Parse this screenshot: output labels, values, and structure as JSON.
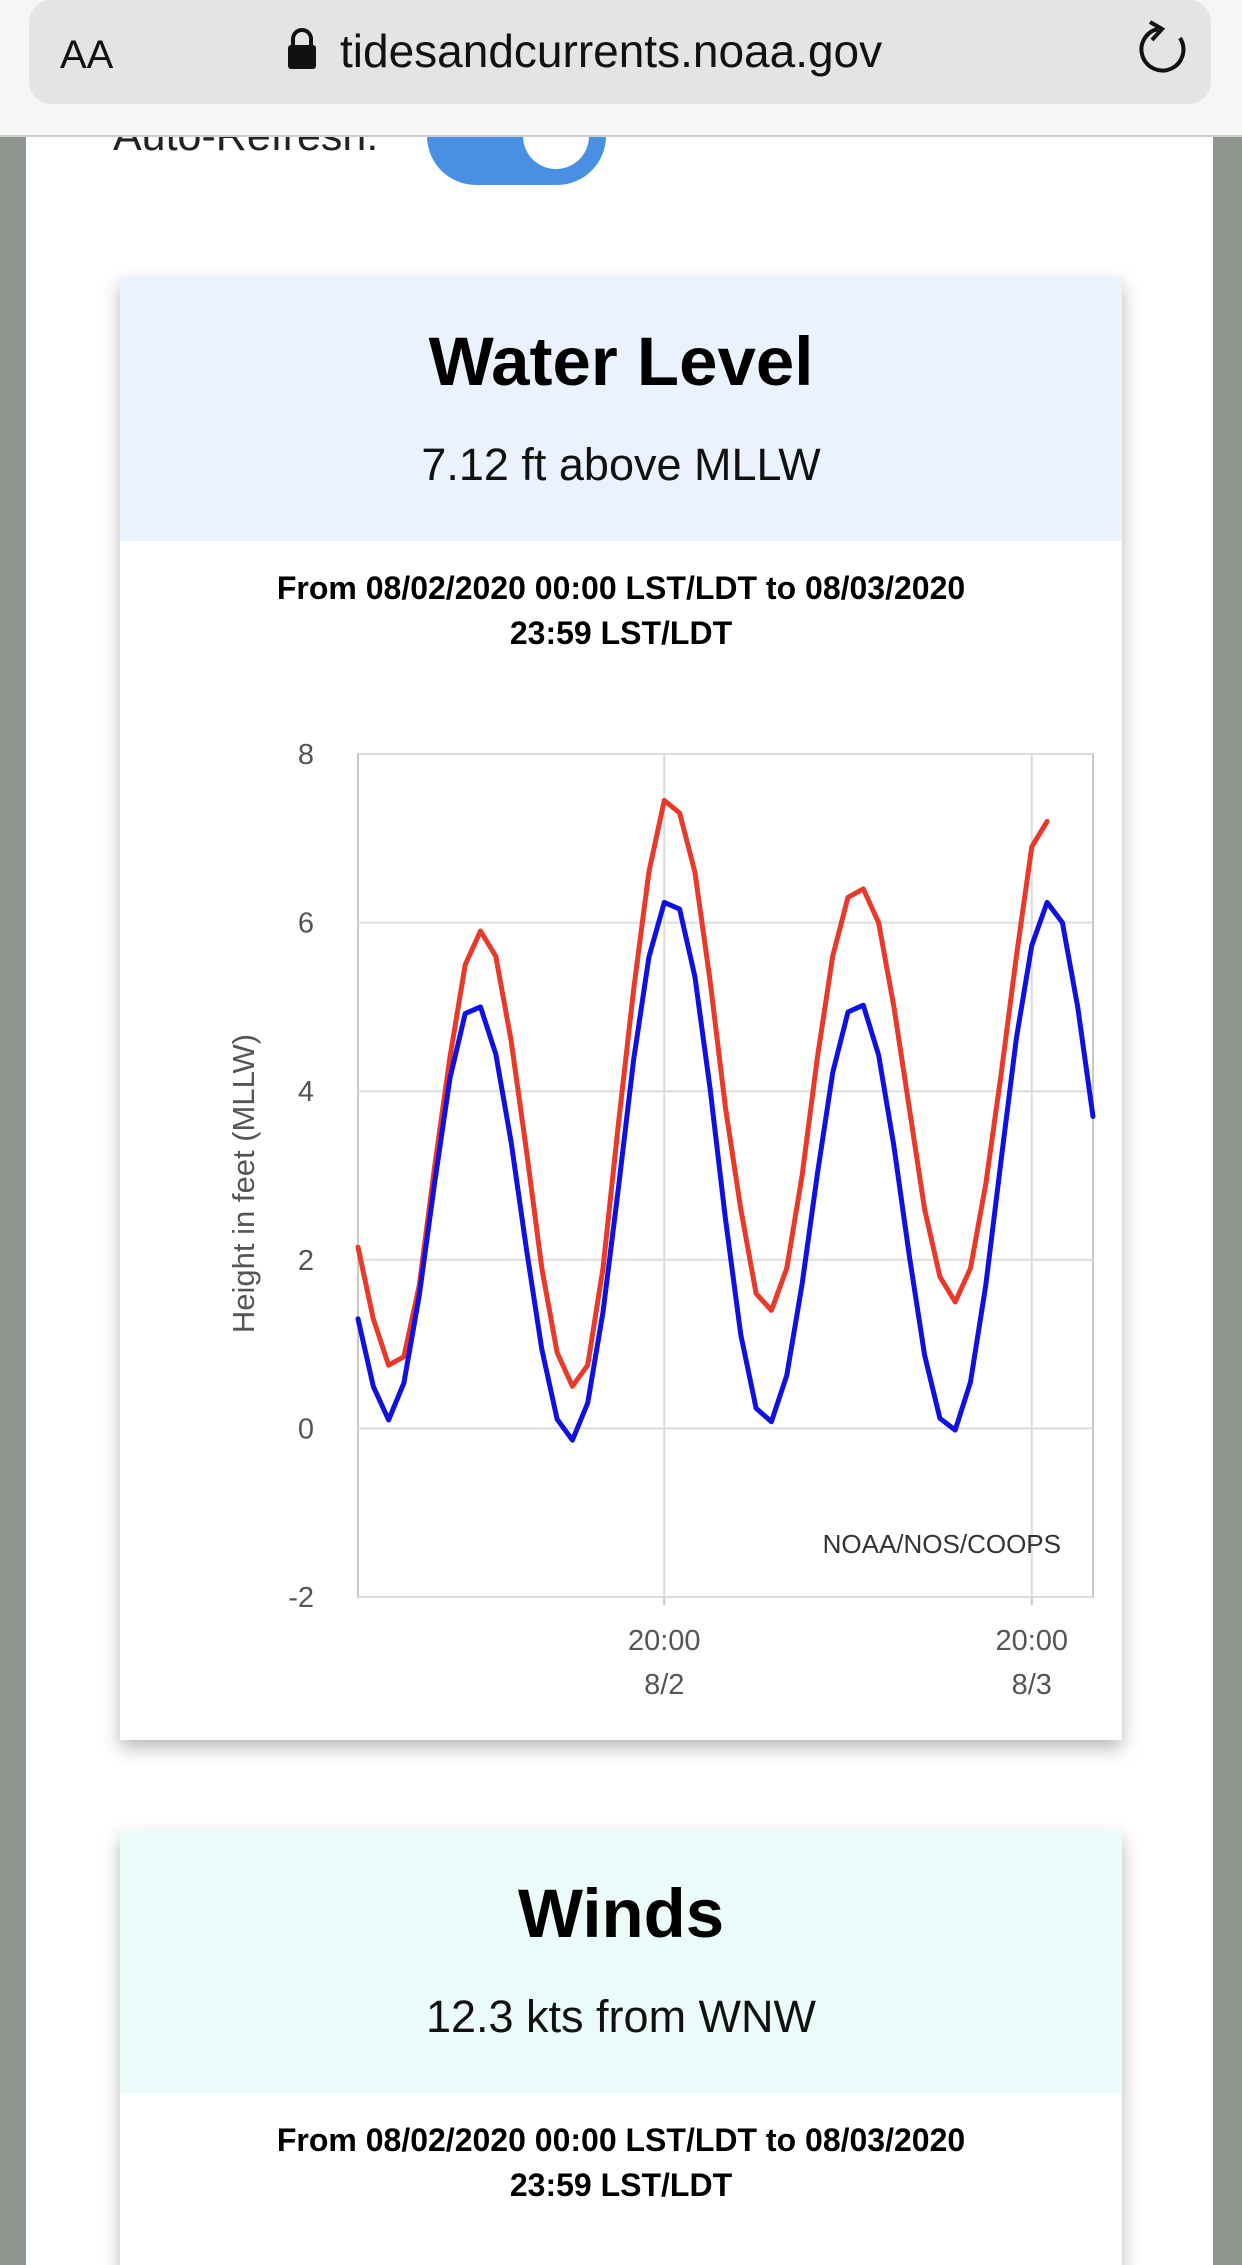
{
  "browser": {
    "text_size_button": "AA",
    "url": "tidesandcurrents.noaa.gov"
  },
  "auto_refresh_label": "Auto-Refresh:",
  "cards": [
    {
      "title": "Water Level",
      "reading": "7.12 ft above MLLW",
      "range": [
        "From 08/02/2020 00:00 LST/LDT to 08/03/2020",
        "23:59 LST/LDT"
      ]
    },
    {
      "title": "Winds",
      "reading": "12.3 kts from WNW",
      "range": [
        "From 08/02/2020 00:00 LST/LDT to 08/03/2020",
        "23:59 LST/LDT"
      ]
    }
  ],
  "chart_data": {
    "type": "line",
    "y_label": "Height in feet (MLLW)",
    "annotation": "NOAA/NOS/COOPS",
    "x": [
      0,
      1,
      2,
      3,
      4,
      5,
      6,
      7,
      8,
      9,
      10,
      11,
      12,
      13,
      14,
      15,
      16,
      17,
      18,
      19,
      20,
      21,
      22,
      23,
      24,
      25,
      26,
      27,
      28,
      29,
      30,
      31,
      32,
      33,
      34,
      35,
      36,
      37,
      38,
      39,
      40,
      41,
      42,
      43,
      44,
      45,
      46,
      47,
      48
    ],
    "xlim": [
      0,
      48
    ],
    "xticks": [
      {
        "value": 20,
        "label": [
          "20:00",
          "8/2"
        ]
      },
      {
        "value": 44,
        "label": [
          "20:00",
          "8/3"
        ]
      }
    ],
    "ylim": [
      -2,
      8
    ],
    "yticks": [
      -2,
      0,
      2,
      4,
      6,
      8
    ],
    "grid": true,
    "series": [
      {
        "color": "#e8392b",
        "values": [
          2.15,
          1.3,
          0.75,
          0.85,
          1.7,
          3.1,
          4.4,
          5.5,
          5.9,
          5.6,
          4.6,
          3.3,
          1.9,
          0.9,
          0.5,
          0.75,
          1.9,
          3.6,
          5.2,
          6.6,
          7.45,
          7.3,
          6.6,
          5.3,
          3.8,
          2.6,
          1.6,
          1.4,
          1.9,
          3.0,
          4.4,
          5.6,
          6.3,
          6.4,
          6.0,
          5.0,
          3.8,
          2.6,
          1.8,
          1.5,
          1.9,
          2.9,
          4.2,
          5.6,
          6.9,
          7.2,
          null,
          null,
          null
        ]
      },
      {
        "color": "#1010e0",
        "values": [
          1.3,
          0.5,
          0.1,
          0.54,
          1.58,
          2.91,
          4.15,
          4.92,
          5.0,
          4.44,
          3.4,
          2.13,
          0.94,
          0.11,
          -0.14,
          0.3,
          1.38,
          2.84,
          4.37,
          5.59,
          6.24,
          6.16,
          5.36,
          4.02,
          2.48,
          1.11,
          0.24,
          0.08,
          0.63,
          1.71,
          3.02,
          4.22,
          4.94,
          5.02,
          4.43,
          3.35,
          2.05,
          0.87,
          0.12,
          -0.02,
          0.55,
          1.7,
          3.18,
          4.63,
          5.73,
          6.24,
          6.0,
          5.0,
          3.7
        ]
      }
    ]
  }
}
